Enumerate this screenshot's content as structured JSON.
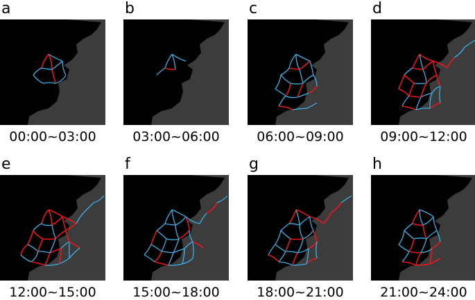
{
  "panels": [
    {
      "letter": "a",
      "time": "00:00~03:00",
      "density": 0.3
    },
    {
      "letter": "b",
      "time": "03:00~06:00",
      "density": 0.15
    },
    {
      "letter": "c",
      "time": "06:00~09:00",
      "density": 0.65
    },
    {
      "letter": "d",
      "time": "09:00~12:00",
      "density": 0.85
    },
    {
      "letter": "e",
      "time": "12:00~15:00",
      "density": 1.0
    },
    {
      "letter": "f",
      "time": "15:00~18:00",
      "density": 0.95
    },
    {
      "letter": "g",
      "time": "18:00~21:00",
      "density": 0.9
    },
    {
      "letter": "h",
      "time": "21:00~24:00",
      "density": 0.7
    }
  ],
  "colors": {
    "background": "#000000",
    "land": "#3c3c3c",
    "route_blue": "#3bb3ea",
    "route_red": "#e8181e"
  }
}
